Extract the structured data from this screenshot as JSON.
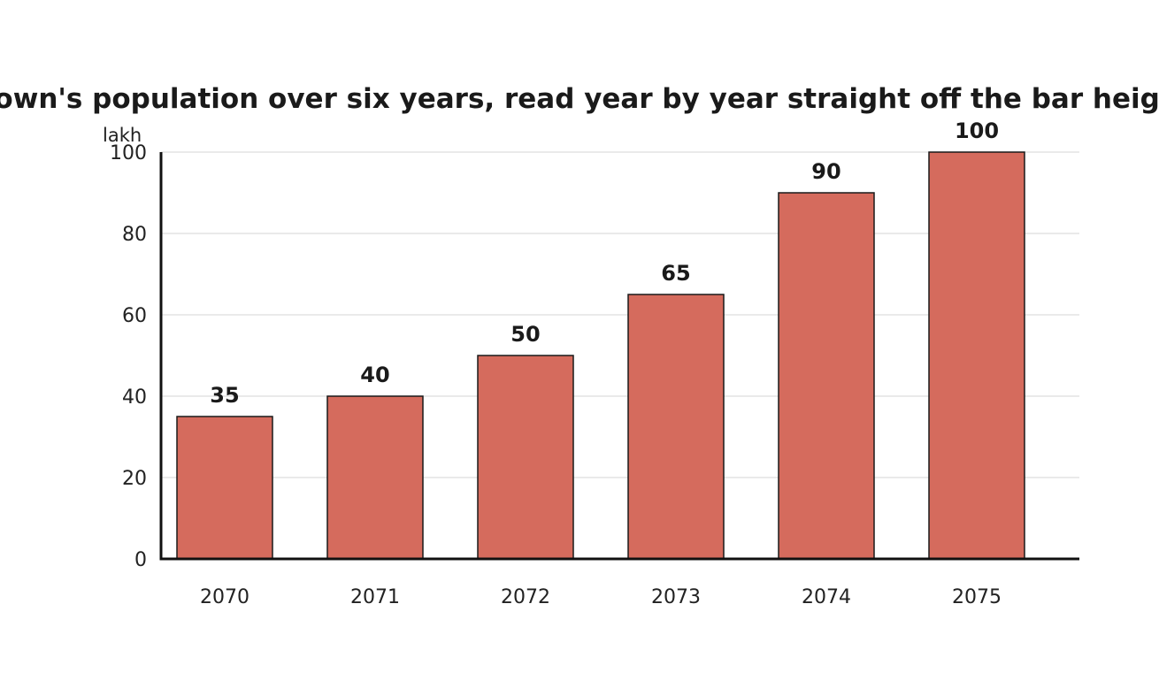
{
  "chart_data": {
    "type": "bar",
    "title": "A town's population over six years, read year by year straight off the bar heights",
    "ylabel": "lakh",
    "xlabel": "",
    "categories": [
      "2070",
      "2071",
      "2072",
      "2073",
      "2074",
      "2075"
    ],
    "values": [
      35,
      40,
      50,
      65,
      90,
      100
    ],
    "ylim": [
      0,
      100
    ],
    "yticks": [
      0,
      20,
      40,
      60,
      80,
      100
    ],
    "grid": true,
    "data_labels": true,
    "bar_color": "#d56b5d"
  }
}
